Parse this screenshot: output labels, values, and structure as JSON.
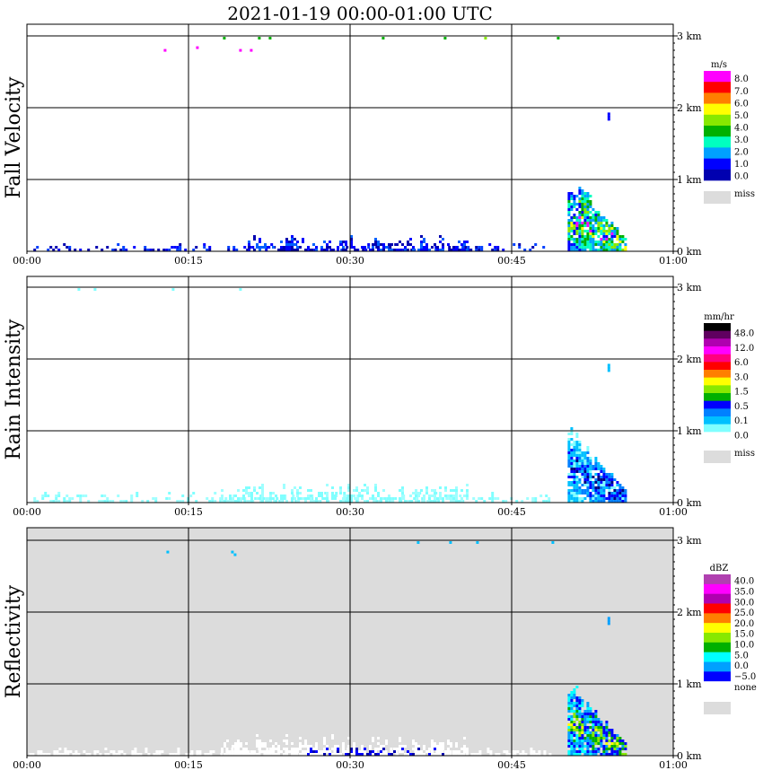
{
  "title": "2021-01-19   00:00-01:00 UTC",
  "time_ticks": [
    "00:00",
    "00:15",
    "00:30",
    "00:45",
    "01:00"
  ],
  "height_ticks": [
    "0 km",
    "1 km",
    "2 km",
    "3 km"
  ],
  "chart_data": [
    {
      "type": "heatmap",
      "ylabel": "Fall Velocity",
      "unit": "m/s",
      "background": "#ffffff",
      "xlim": [
        0,
        60
      ],
      "ylim": [
        0,
        3
      ],
      "legend": {
        "labels": [
          "8.0",
          "7.0",
          "6.0",
          "5.0",
          "4.0",
          "3.0",
          "2.0",
          "1.0",
          "0.0"
        ],
        "colors": [
          "#ff00ff",
          "#ff0000",
          "#ff7f00",
          "#ffff00",
          "#88e800",
          "#00b000",
          "#00ffc0",
          "#00a0ff",
          "#0000ff",
          "#0000b0"
        ],
        "missing_label": "miss",
        "missing_color": "#dcdcdc"
      },
      "features": [
        {
          "t_start": 0.6,
          "t_end": 48.5,
          "h_max": 0.12,
          "colors": [
            "#0000ff",
            "#0000b0",
            "#0040ff"
          ],
          "density": 0.45
        },
        {
          "t_start": 20.5,
          "t_end": 41,
          "h_max": 0.25,
          "colors": [
            "#0000ff",
            "#0000b0",
            "#0060ff"
          ],
          "density": 0.6
        },
        {
          "t_start": 50.2,
          "t_end": 55.5,
          "h_max": 1.15,
          "slant": true,
          "colors": [
            "#0000ff",
            "#00a0ff",
            "#00ffc0",
            "#00b000",
            "#88e800",
            "#ffff00",
            "#ff00ff"
          ],
          "density": 0.85
        },
        {
          "t_start": 4.7,
          "t_end": 56,
          "h_max": 3.0,
          "h_min": 2.95,
          "sparse": true,
          "colors": [
            "#88e800",
            "#00b000"
          ],
          "density": 0.03
        },
        {
          "t_start": 12.2,
          "t_end": 22.1,
          "h_max": 2.85,
          "h_min": 2.78,
          "sparse": true,
          "colors": [
            "#ff00ff"
          ],
          "density": 0.04
        },
        {
          "t_start": 53.9,
          "t_end": 54.1,
          "h_max": 1.95,
          "h_min": 1.82,
          "sparse": true,
          "colors": [
            "#0000ff"
          ],
          "density": 1.0
        }
      ]
    },
    {
      "type": "heatmap",
      "ylabel": "Rain Intensity",
      "unit": "mm/hr",
      "background": "#ffffff",
      "xlim": [
        0,
        60
      ],
      "ylim": [
        0,
        3
      ],
      "legend": {
        "labels": [
          "48.0",
          "12.0",
          "6.0",
          "3.0",
          "1.5",
          "0.5",
          "0.1",
          "0.0"
        ],
        "colors": [
          "#000000",
          "#600060",
          "#b000b0",
          "#ff00ff",
          "#ff0080",
          "#ff0000",
          "#ff7f00",
          "#ffff00",
          "#88e800",
          "#00b000",
          "#0000ff",
          "#0080ff",
          "#00c0ff",
          "#80ffff",
          "#ffffff"
        ],
        "missing_label": "miss",
        "missing_color": "#dcdcdc"
      },
      "features": [
        {
          "t_start": 0.6,
          "t_end": 48.5,
          "h_max": 0.15,
          "colors": [
            "#80ffff",
            "#a0ffff"
          ],
          "density": 0.5
        },
        {
          "t_start": 18,
          "t_end": 41,
          "h_max": 0.3,
          "colors": [
            "#80ffff",
            "#a0ffff"
          ],
          "density": 0.55
        },
        {
          "t_start": 50.2,
          "t_end": 55.5,
          "h_max": 1.15,
          "slant": true,
          "colors": [
            "#80ffff",
            "#00c0ff",
            "#0080ff",
            "#0000ff",
            "#000080"
          ],
          "density": 0.85
        },
        {
          "t_start": 4.7,
          "t_end": 56,
          "h_max": 3.0,
          "h_min": 2.95,
          "sparse": true,
          "colors": [
            "#80ffff"
          ],
          "density": 0.03
        },
        {
          "t_start": 53.9,
          "t_end": 54.1,
          "h_max": 1.95,
          "h_min": 1.82,
          "sparse": true,
          "colors": [
            "#00c0ff"
          ],
          "density": 1.0
        }
      ]
    },
    {
      "type": "heatmap",
      "ylabel": "Reflectivity",
      "unit": "dBZ",
      "background": "#dcdcdc",
      "xlim": [
        0,
        60
      ],
      "ylim": [
        0,
        3
      ],
      "legend": {
        "labels": [
          "40.0",
          "35.0",
          "30.0",
          "25.0",
          "20.0",
          "15.0",
          "10.0",
          "5.0",
          "0.0",
          "−5.0",
          "none"
        ],
        "colors": [
          "#b040b0",
          "#ff00ff",
          "#b000b0",
          "#ff0000",
          "#ff7f00",
          "#ffff00",
          "#88e800",
          "#00b000",
          "#00ffff",
          "#00a0ff",
          "#0000ff",
          "#ffffff"
        ],
        "missing_label": "",
        "missing_color": "#dcdcdc"
      },
      "features": [
        {
          "t_start": 0.2,
          "t_end": 48.5,
          "h_max": 0.12,
          "colors": [
            "#ffffff"
          ],
          "density": 0.75
        },
        {
          "t_start": 18,
          "t_end": 41,
          "h_max": 0.3,
          "colors": [
            "#ffffff"
          ],
          "density": 0.6
        },
        {
          "t_start": 26,
          "t_end": 39,
          "h_max": 0.15,
          "colors": [
            "#0000b0",
            "#0000ff"
          ],
          "density": 0.3
        },
        {
          "t_start": 50.2,
          "t_end": 55.5,
          "h_max": 1.15,
          "slant": true,
          "colors": [
            "#00ffff",
            "#00a0ff",
            "#0000ff",
            "#00b000",
            "#88e800",
            "#ffff00"
          ],
          "density": 0.85
        },
        {
          "t_start": 4.7,
          "t_end": 56,
          "h_max": 3.0,
          "h_min": 2.95,
          "sparse": true,
          "colors": [
            "#00c0ff"
          ],
          "density": 0.03
        },
        {
          "t_start": 12.2,
          "t_end": 22.1,
          "h_max": 2.85,
          "h_min": 2.78,
          "sparse": true,
          "colors": [
            "#00c0ff"
          ],
          "density": 0.04
        },
        {
          "t_start": 53.9,
          "t_end": 54.1,
          "h_max": 1.95,
          "h_min": 1.82,
          "sparse": true,
          "colors": [
            "#00a0ff"
          ],
          "density": 1.0
        }
      ]
    }
  ]
}
